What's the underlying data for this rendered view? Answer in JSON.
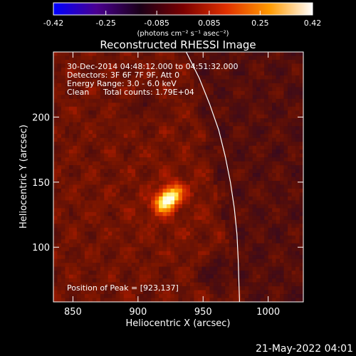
{
  "chart_data": {
    "type": "heatmap",
    "title": "Reconstructed RHESSI Image",
    "colorbar": {
      "min": -0.42,
      "max": 0.42,
      "tick_labels": [
        "-0.42",
        "-0.25",
        "-0.085",
        "0.085",
        "0.25",
        "0.42"
      ],
      "tick_values": [
        -0.42,
        -0.25,
        -0.085,
        0.085,
        0.25,
        0.42
      ],
      "unit_label": "(photons cm⁻² s⁻¹ asec⁻²)",
      "colors": [
        "#0000ff",
        "#4a0090",
        "#1a0018",
        "#7a0000",
        "#e03000",
        "#ff9a00",
        "#ffffff"
      ]
    },
    "xlabel": "Heliocentric X (arcsec)",
    "ylabel": "Heliocentric Y (arcsec)",
    "xlim": [
      835,
      1027
    ],
    "ylim": [
      58,
      250
    ],
    "x_ticks": [
      850,
      900,
      950,
      1000
    ],
    "y_ticks": [
      100,
      150,
      200
    ],
    "annotations": {
      "time_range": "30-Dec-2014 04:48:12.000 to 04:51:32.000",
      "detectors": "Detectors: 3F 6F 7F 9F, Att 0",
      "energy": "Energy Range: 3.0 - 6.0 keV",
      "clean": "Clean",
      "counts": "Total counts: 1.79E+04",
      "peak": "Position of Peak = [923,137]"
    },
    "peak": {
      "x": 923,
      "y": 137,
      "value": 0.42
    },
    "limb_curve": [
      [
        937,
        250
      ],
      [
        947,
        230
      ],
      [
        955,
        210
      ],
      [
        962,
        190
      ],
      [
        967,
        170
      ],
      [
        971,
        150
      ],
      [
        974,
        130
      ],
      [
        976,
        110
      ],
      [
        977,
        90
      ],
      [
        978,
        58
      ]
    ],
    "timestamp": "21-May-2022 04:01",
    "colors": {
      "background": "#000000",
      "text": "#ffffff"
    }
  }
}
